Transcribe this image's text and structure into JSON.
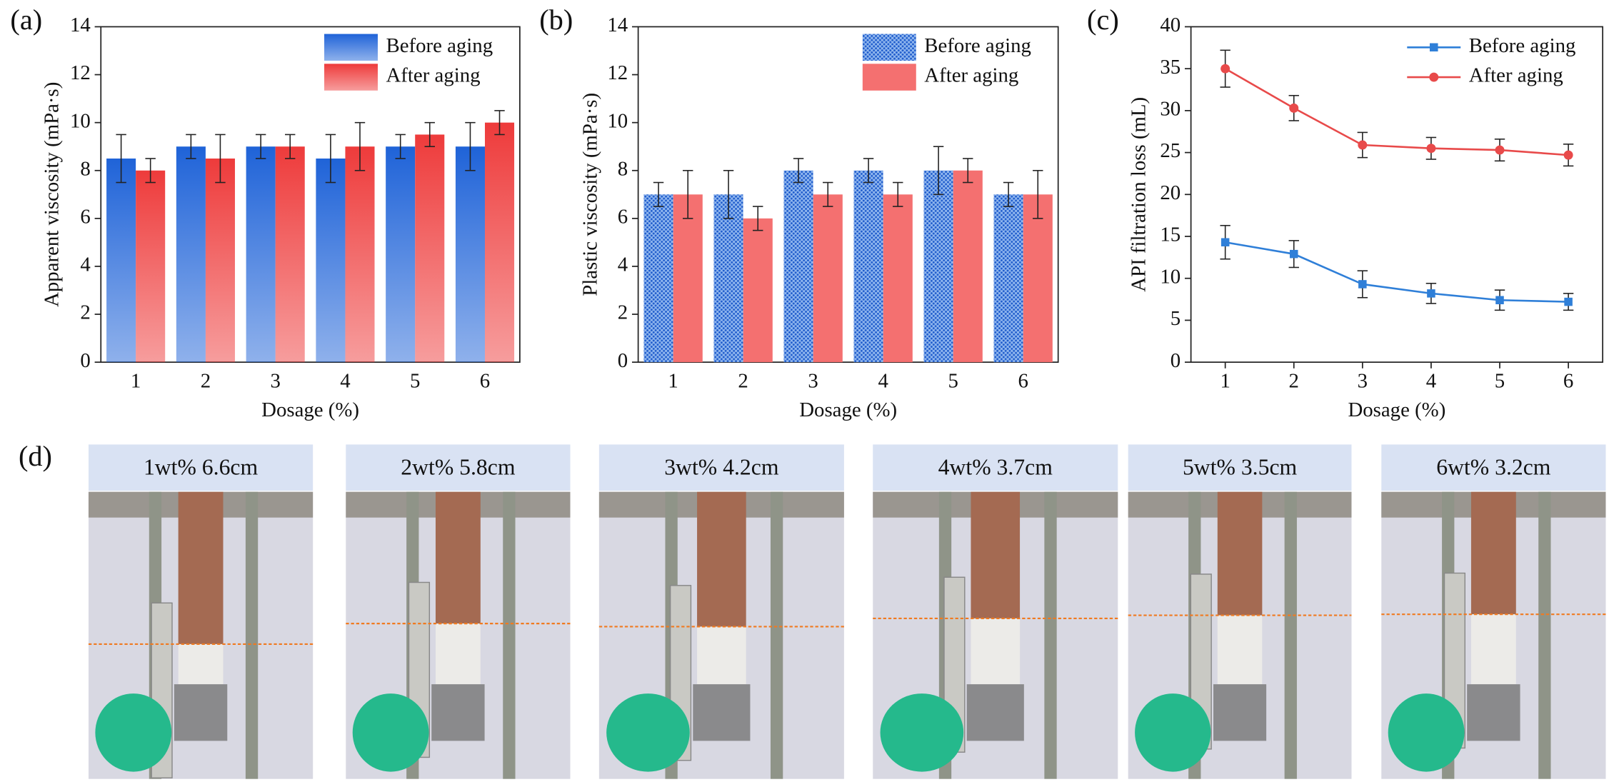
{
  "chart_data": [
    {
      "type": "bar",
      "panel": "(a)",
      "x_label": "Dosage (%)",
      "y_label": "Apparent viscosity (mPa·s)",
      "categories": [
        "1",
        "2",
        "3",
        "4",
        "5",
        "6"
      ],
      "series": [
        {
          "name": "Before aging",
          "color": "#1f63d8",
          "values": [
            8.5,
            9,
            9,
            8.5,
            9,
            9
          ],
          "errors": [
            1,
            0.5,
            0.5,
            1,
            0.5,
            1
          ]
        },
        {
          "name": "After aging",
          "color": "#ee3b3b",
          "values": [
            8,
            8.5,
            9,
            9,
            9.5,
            10
          ],
          "errors": [
            0.5,
            1,
            0.5,
            1,
            0.5,
            0.5
          ]
        }
      ],
      "ylim": [
        0,
        14
      ],
      "yticks": [
        0,
        2,
        4,
        6,
        8,
        10,
        12,
        14
      ],
      "bar_fill": "gradient",
      "legend": "upper right"
    },
    {
      "type": "bar",
      "panel": "(b)",
      "x_label": "Dosage (%)",
      "y_label": "Plastic viscosity  (mPa·s)",
      "categories": [
        "1",
        "2",
        "3",
        "4",
        "5",
        "6"
      ],
      "series": [
        {
          "name": "Before aging",
          "color": "#2a6fd6",
          "values": [
            7,
            7,
            8,
            8,
            8,
            7
          ],
          "errors": [
            0.5,
            1,
            0.5,
            0.5,
            1,
            0.5
          ]
        },
        {
          "name": "After aging",
          "color": "#f47070",
          "values": [
            7,
            6,
            7,
            7,
            8,
            7
          ],
          "errors": [
            1,
            0.5,
            0.5,
            0.5,
            0.5,
            1
          ]
        }
      ],
      "ylim": [
        0,
        14
      ],
      "yticks": [
        0,
        2,
        4,
        6,
        8,
        10,
        12,
        14
      ],
      "bar_fill": "dots",
      "legend": "upper right"
    },
    {
      "type": "line",
      "panel": "(c)",
      "x_label": "Dosage (%)",
      "y_label": "API filtration loss (mL)",
      "x": [
        1,
        2,
        3,
        4,
        5,
        6
      ],
      "xlim": [
        0.5,
        6.5
      ],
      "xticks": [
        1,
        2,
        3,
        4,
        5,
        6
      ],
      "series": [
        {
          "name": "Before aging",
          "color": "#2f7fd8",
          "marker": "square",
          "values": [
            14.3,
            12.9,
            9.3,
            8.2,
            7.4,
            7.2
          ],
          "errors": [
            2,
            1.6,
            1.6,
            1.2,
            1.2,
            1.0
          ]
        },
        {
          "name": "After aging",
          "color": "#e84a4a",
          "marker": "circle",
          "values": [
            35,
            30.3,
            25.9,
            25.5,
            25.3,
            24.7
          ],
          "errors": [
            2.2,
            1.5,
            1.5,
            1.3,
            1.3,
            1.3
          ]
        }
      ],
      "ylim": [
        0,
        40
      ],
      "yticks": [
        0,
        5,
        10,
        15,
        20,
        25,
        30,
        35,
        40
      ],
      "legend": "upper right"
    }
  ],
  "photos": {
    "panel": "(d)",
    "captions": [
      "1wt% 6.6cm",
      "2wt% 5.8cm",
      "3wt% 4.2cm",
      "4wt% 3.7cm",
      "5wt% 3.5cm",
      "6wt% 3.2cm"
    ]
  }
}
